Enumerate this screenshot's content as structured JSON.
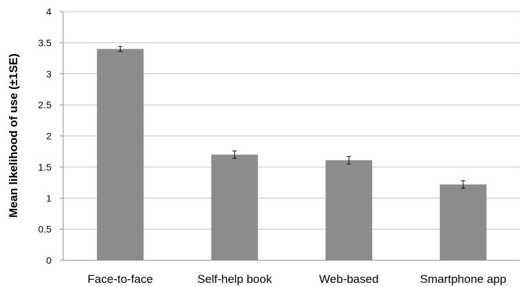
{
  "chart_data": {
    "type": "bar",
    "title": "",
    "xlabel": "",
    "ylabel": "Mean likelihood of use (±1SE)",
    "categories": [
      "Face-to-face",
      "Self-help book",
      "Web-based",
      "Smartphone app"
    ],
    "values": [
      3.4,
      1.7,
      1.61,
      1.22
    ],
    "errors": [
      0.04,
      0.06,
      0.06,
      0.06
    ],
    "ylim": [
      0,
      4
    ],
    "yticks": [
      "0",
      "0.5",
      "1",
      "1.5",
      "2",
      "2.5",
      "3",
      "3.5",
      "4"
    ],
    "grid": true,
    "legend": "none",
    "bar_color": "#8c8c8c",
    "grid_color": "#bfbfbf"
  }
}
